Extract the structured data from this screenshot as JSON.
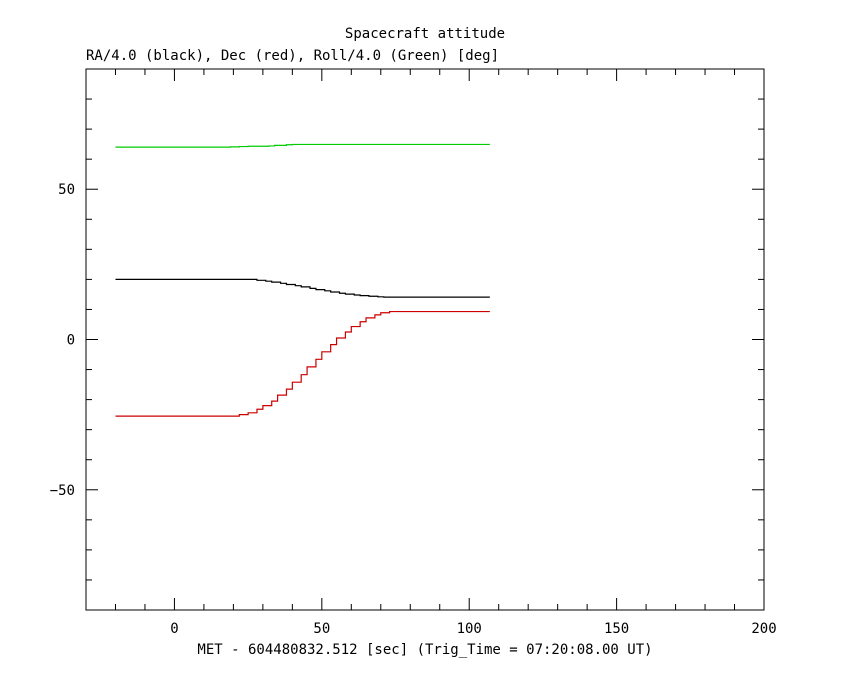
{
  "chart_data": {
    "type": "line",
    "title": "Spacecraft attitude",
    "subtitle": "RA/4.0 (black), Dec (red), Roll/4.0 (Green) [deg]",
    "xlabel": "MET - 604480832.512 [sec] (Trig_Time = 07:20:08.00 UT)",
    "ylabel": "",
    "xlim": [
      -30,
      200
    ],
    "ylim": [
      -90,
      90
    ],
    "x_ticks": [
      0,
      50,
      100,
      150,
      200
    ],
    "y_ticks": [
      -50,
      0,
      50
    ],
    "x_tick_labels": [
      "0",
      "50",
      "100",
      "150",
      "200"
    ],
    "y_tick_labels": [
      "−50",
      "0",
      "50"
    ],
    "grid": false,
    "series": [
      {
        "name": "RA/4.0",
        "color": "#000000",
        "step": true,
        "points": [
          [
            -20,
            20.0
          ],
          [
            26,
            20.0
          ],
          [
            28,
            19.7
          ],
          [
            31,
            19.4
          ],
          [
            33,
            19.1
          ],
          [
            36,
            18.7
          ],
          [
            38,
            18.3
          ],
          [
            41,
            17.9
          ],
          [
            43,
            17.5
          ],
          [
            46,
            17.0
          ],
          [
            48,
            16.6
          ],
          [
            51,
            16.2
          ],
          [
            53,
            15.8
          ],
          [
            56,
            15.4
          ],
          [
            58,
            15.1
          ],
          [
            61,
            14.8
          ],
          [
            63,
            14.6
          ],
          [
            66,
            14.4
          ],
          [
            69,
            14.2
          ],
          [
            71,
            14.1
          ],
          [
            107,
            14.1
          ]
        ]
      },
      {
        "name": "Dec",
        "color": "#cc0000",
        "step": true,
        "points": [
          [
            -20,
            -25.5
          ],
          [
            20,
            -25.5
          ],
          [
            22,
            -25.0
          ],
          [
            25,
            -24.4
          ],
          [
            28,
            -23.2
          ],
          [
            30,
            -22.0
          ],
          [
            33,
            -20.5
          ],
          [
            35,
            -18.5
          ],
          [
            38,
            -16.5
          ],
          [
            40,
            -14.2
          ],
          [
            43,
            -11.7
          ],
          [
            45,
            -9.1
          ],
          [
            48,
            -6.6
          ],
          [
            50,
            -4.1
          ],
          [
            53,
            -1.7
          ],
          [
            55,
            0.5
          ],
          [
            58,
            2.5
          ],
          [
            60,
            4.3
          ],
          [
            63,
            5.9
          ],
          [
            65,
            7.2
          ],
          [
            68,
            8.2
          ],
          [
            70,
            8.9
          ],
          [
            73,
            9.3
          ],
          [
            107,
            9.3
          ]
        ]
      },
      {
        "name": "Roll/4.0",
        "color": "#00cc00",
        "step": true,
        "points": [
          [
            -20,
            64.0
          ],
          [
            17,
            64.0
          ],
          [
            19,
            64.1
          ],
          [
            22,
            64.2
          ],
          [
            25,
            64.3
          ],
          [
            27,
            64.3
          ],
          [
            32,
            64.4
          ],
          [
            34,
            64.6
          ],
          [
            38,
            64.8
          ],
          [
            40,
            64.9
          ],
          [
            107,
            64.9
          ]
        ]
      }
    ]
  }
}
